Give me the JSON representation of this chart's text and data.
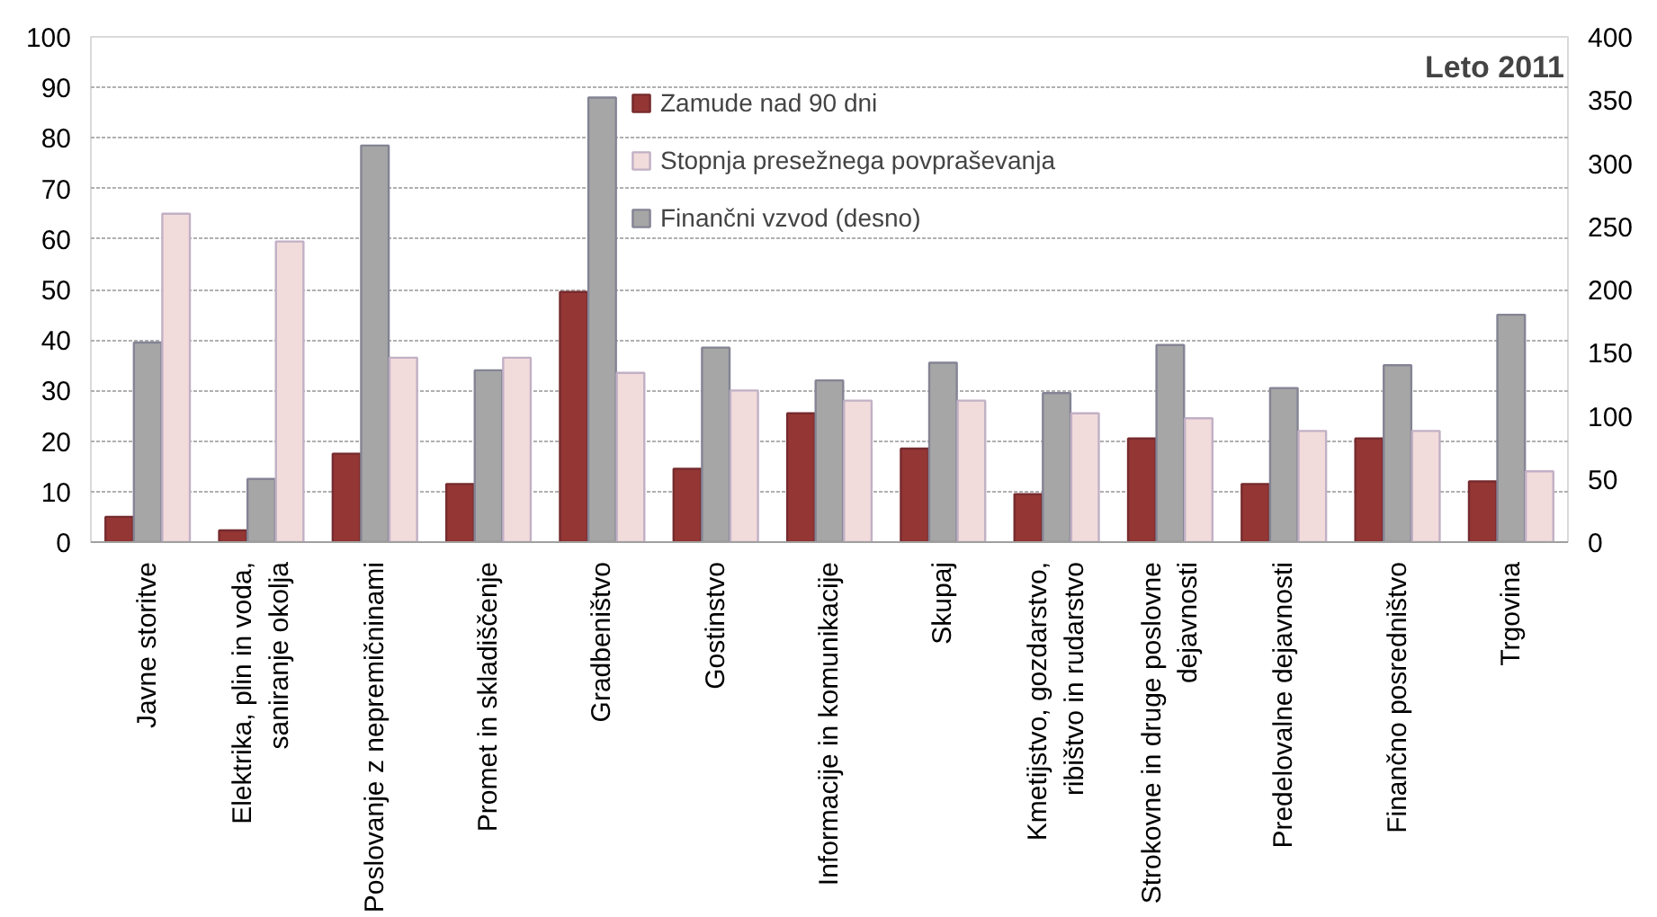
{
  "chart_data": {
    "type": "bar",
    "categories": [
      "Javne storitve",
      "Elektrika, plin in voda, saniranje okolja",
      "Poslovanje z nepremičninami",
      "Promet in skladiščenje",
      "Gradbeništvo",
      "Gostinstvo",
      "Informacije in komunikacije",
      "Skupaj",
      "Kmetijstvo, gozdarstvo, ribištvo in rudarstvo",
      "Strokovne in druge poslovne dejavnosti",
      "Predelovalne dejavnosti",
      "Finančno posredništvo",
      "Trgovina"
    ],
    "series": [
      {
        "name": "Zamude nad 90 dni",
        "color": "#943634",
        "values": [
          5,
          2.3,
          17.5,
          11.5,
          49.5,
          14.5,
          25.5,
          18.5,
          9.5,
          20.5,
          11.5,
          20.5,
          12
        ]
      },
      {
        "name": "Finančni vzvod (desno)",
        "color": "#a6a6a6",
        "axis": "y2",
        "values": [
          158,
          50,
          314,
          136,
          352,
          154,
          128,
          142,
          118,
          156,
          122,
          140,
          180
        ]
      },
      {
        "name": "Stopnja presežnega povpraševanja",
        "color": "#f2dcdb",
        "values": [
          65,
          59.5,
          36.5,
          36.5,
          33.5,
          30,
          28,
          28,
          25.5,
          24.5,
          22,
          22,
          14
        ]
      }
    ],
    "ylim": [
      0,
      100
    ],
    "yticks": [
      0,
      10,
      20,
      30,
      40,
      50,
      60,
      70,
      80,
      90,
      100
    ],
    "y2lim": [
      0,
      400
    ],
    "y2ticks": [
      0,
      50,
      100,
      150,
      200,
      250,
      300,
      350,
      400
    ],
    "annotations": [
      "Leto 2011"
    ],
    "grid": "y",
    "legend": "top right"
  }
}
